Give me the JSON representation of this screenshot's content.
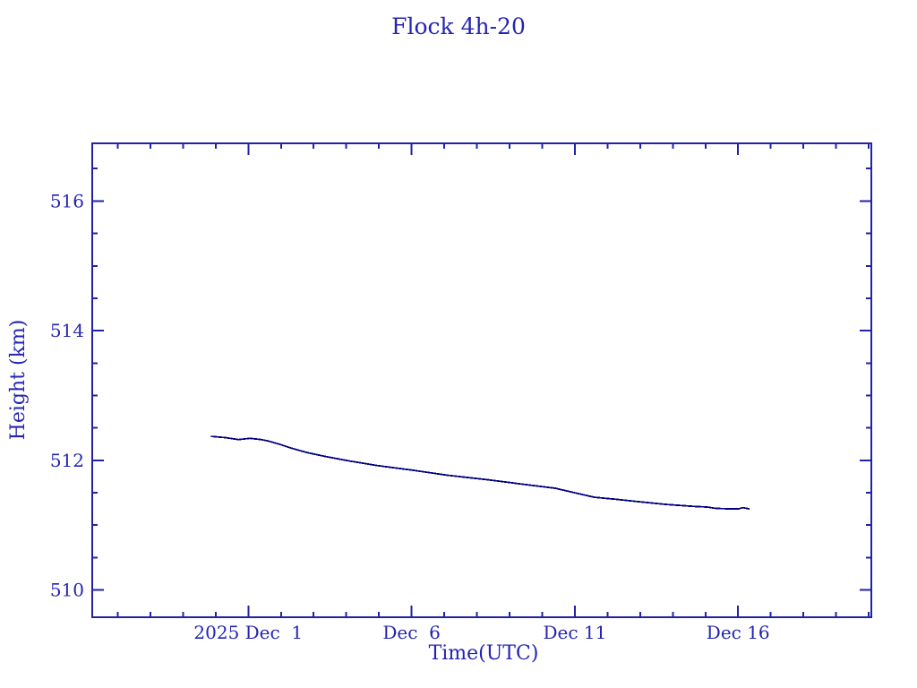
{
  "chart_data": {
    "type": "line",
    "title": "Flock 4h-20",
    "xlabel": "Time(UTC)",
    "ylabel": "Height (km)",
    "grid": false,
    "legend": null,
    "colors": {
      "line": "#000080",
      "axis": "#2222a8",
      "text": "#2424b4",
      "background": "#ffffff"
    },
    "x_axis": {
      "unit": "days relative to 2025 Dec 1 00:00 UTC",
      "lim": [
        -4.78,
        19.08
      ],
      "major_ticks": [
        {
          "value": 0,
          "label": "2025 Dec  1"
        },
        {
          "value": 5,
          "label": "Dec  6"
        },
        {
          "value": 10,
          "label": "Dec 11"
        },
        {
          "value": 15,
          "label": "Dec 16"
        }
      ],
      "minor_ticks": [
        -4,
        -3,
        -2,
        -1,
        1,
        2,
        3,
        4,
        6,
        7,
        8,
        9,
        11,
        12,
        13,
        14,
        16,
        17,
        18,
        19
      ]
    },
    "y_axis": {
      "unit": "km",
      "lim": [
        509.58,
        516.89
      ],
      "major_ticks": [
        {
          "value": 510,
          "label": "510"
        },
        {
          "value": 512,
          "label": "512"
        },
        {
          "value": 514,
          "label": "514"
        },
        {
          "value": 516,
          "label": "516"
        }
      ],
      "minor_ticks": [
        510.5,
        511,
        511.5,
        512.5,
        513,
        513.5,
        514.5,
        515,
        515.5,
        516.5
      ]
    },
    "series": [
      {
        "name": "Flock 4h-20 orbit height",
        "points": [
          [
            -1.15,
            512.37
          ],
          [
            -0.7,
            512.35
          ],
          [
            -0.3,
            512.32
          ],
          [
            0.05,
            512.34
          ],
          [
            0.4,
            512.32
          ],
          [
            0.6,
            512.3
          ],
          [
            0.95,
            512.25
          ],
          [
            1.3,
            512.19
          ],
          [
            1.8,
            512.12
          ],
          [
            2.35,
            512.06
          ],
          [
            3.1,
            511.99
          ],
          [
            3.95,
            511.92
          ],
          [
            5.0,
            511.85
          ],
          [
            6.1,
            511.77
          ],
          [
            7.35,
            511.7
          ],
          [
            8.6,
            511.62
          ],
          [
            9.4,
            511.57
          ],
          [
            10.0,
            511.5
          ],
          [
            10.6,
            511.43
          ],
          [
            11.25,
            511.4
          ],
          [
            12.0,
            511.36
          ],
          [
            12.8,
            511.32
          ],
          [
            13.65,
            511.29
          ],
          [
            14.05,
            511.28
          ],
          [
            14.3,
            511.26
          ],
          [
            14.75,
            511.25
          ],
          [
            15.0,
            511.25
          ],
          [
            15.15,
            511.27
          ],
          [
            15.35,
            511.25
          ]
        ]
      }
    ]
  }
}
